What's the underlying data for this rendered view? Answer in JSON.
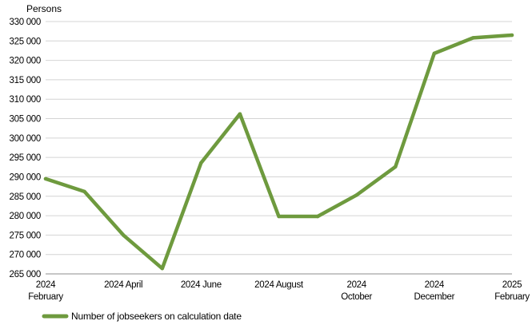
{
  "chart_data": {
    "type": "line",
    "title": "",
    "unit_label": "Persons",
    "xlabel": "",
    "ylabel": "Persons",
    "ylim": [
      265000,
      330000
    ],
    "ytick_step": 5000,
    "ytick_labels": [
      "265 000",
      "270 000",
      "275 000",
      "280 000",
      "285 000",
      "290 000",
      "295 000",
      "300 000",
      "305 000",
      "310 000",
      "315 000",
      "320 000",
      "325 000",
      "330 000"
    ],
    "grid": true,
    "legend_position": "bottom-left",
    "x": [
      "2024-02",
      "2024-03",
      "2024-04",
      "2024-05",
      "2024-06",
      "2024-07",
      "2024-08",
      "2024-09",
      "2024-10",
      "2024-11",
      "2024-12",
      "2025-01",
      "2025-02"
    ],
    "x_tick_labels": [
      {
        "x": "2024-02",
        "lines": [
          "2024",
          "February"
        ]
      },
      {
        "x": "2024-04",
        "lines": [
          "2024 April"
        ]
      },
      {
        "x": "2024-06",
        "lines": [
          "2024 June"
        ]
      },
      {
        "x": "2024-08",
        "lines": [
          "2024 August"
        ]
      },
      {
        "x": "2024-10",
        "lines": [
          "2024",
          "October"
        ]
      },
      {
        "x": "2024-12",
        "lines": [
          "2024",
          "December"
        ]
      },
      {
        "x": "2025-02",
        "lines": [
          "2025",
          "February"
        ]
      }
    ],
    "series": [
      {
        "name": "Number of jobseekers on calculation date",
        "color": "#6e9a3e",
        "values": [
          289500,
          286200,
          275000,
          266400,
          293600,
          306200,
          279800,
          279800,
          285300,
          292600,
          321800,
          325800,
          326500
        ]
      }
    ]
  }
}
